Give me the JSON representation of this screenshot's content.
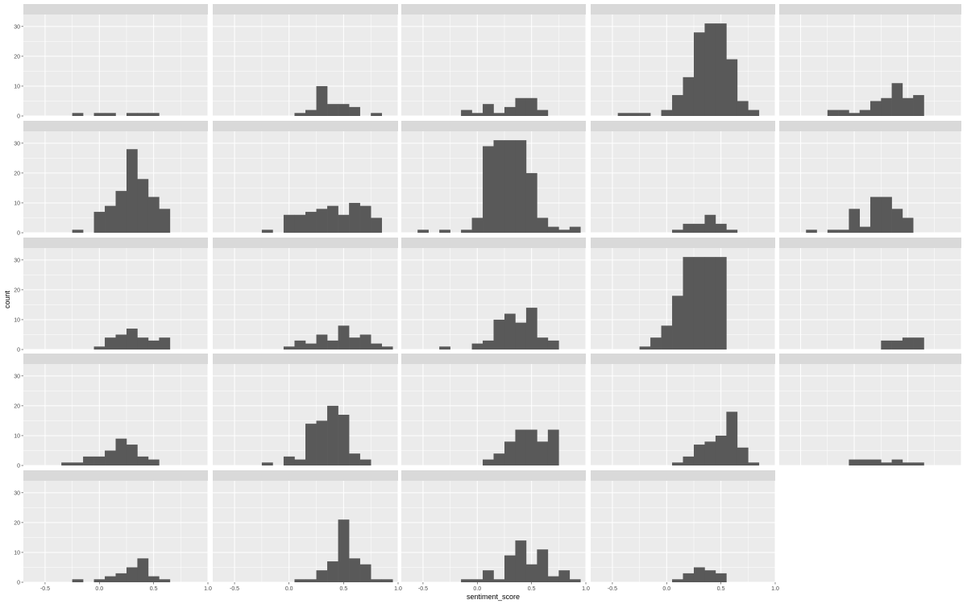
{
  "chart_data": {
    "type": "histogram_facets",
    "xlabel": "sentiment_score",
    "ylabel": "count",
    "xlim": [
      -0.7,
      1.0
    ],
    "ylim": [
      0,
      34
    ],
    "bin_width": 0.1,
    "bin_starts": [
      -0.55,
      -0.45,
      -0.35,
      -0.25,
      -0.15,
      -0.05,
      0.05,
      0.15,
      0.25,
      0.35,
      0.45,
      0.55,
      0.65,
      0.75,
      0.85,
      0.95
    ],
    "x_ticks_left": [
      -0.5,
      0.0,
      0.5,
      1.0
    ],
    "x_ticks_right": [
      -0.5,
      0.0,
      0.5,
      1.0
    ],
    "x_tick_labels_left": [
      "-0.5",
      "0.0",
      "0.5",
      "1.0"
    ],
    "x_tick_labels_right": [
      "-0.5",
      "0.0",
      "0.5",
      "1.0"
    ],
    "y_ticks": [
      0,
      10,
      20,
      30
    ],
    "y_tick_labels": [
      "0",
      "10",
      "20",
      "30"
    ],
    "grid": true,
    "bar_color": "#595959",
    "panel_bg": "#ebebeb",
    "strip_bg": "#d9d9d9",
    "grid_color": "#ffffff",
    "facets": [
      {
        "row": 0,
        "col": 0,
        "counts": [
          0,
          0,
          0,
          1,
          0,
          1,
          1,
          0,
          1,
          1,
          1,
          0,
          0,
          0,
          0,
          0
        ]
      },
      {
        "row": 0,
        "col": 1,
        "counts": [
          0,
          0,
          0,
          0,
          0,
          0,
          1,
          2,
          10,
          4,
          4,
          3,
          0,
          1,
          0,
          0
        ]
      },
      {
        "row": 0,
        "col": 2,
        "counts": [
          0,
          0,
          0,
          0,
          2,
          1,
          4,
          1,
          3,
          6,
          6,
          2,
          0,
          0,
          0,
          0
        ]
      },
      {
        "row": 0,
        "col": 3,
        "counts": [
          0,
          1,
          1,
          1,
          0,
          2,
          7,
          13,
          28,
          31,
          31,
          19,
          5,
          2,
          0,
          0
        ]
      },
      {
        "row": 0,
        "col": 4,
        "counts": [
          0,
          0,
          0,
          2,
          2,
          1,
          2,
          5,
          6,
          11,
          6,
          7,
          0,
          0,
          0,
          0
        ]
      },
      {
        "row": 1,
        "col": 0,
        "counts": [
          0,
          0,
          0,
          1,
          0,
          7,
          9,
          14,
          28,
          18,
          12,
          8,
          0,
          0,
          0,
          0
        ]
      },
      {
        "row": 1,
        "col": 1,
        "counts": [
          0,
          0,
          0,
          1,
          0,
          6,
          6,
          7,
          8,
          9,
          6,
          10,
          9,
          5,
          0,
          0
        ]
      },
      {
        "row": 1,
        "col": 2,
        "counts": [
          1,
          0,
          1,
          0,
          1,
          5,
          29,
          31,
          31,
          31,
          20,
          5,
          2,
          1,
          2,
          0
        ]
      },
      {
        "row": 1,
        "col": 3,
        "counts": [
          0,
          0,
          0,
          0,
          0,
          0,
          1,
          3,
          3,
          6,
          3,
          1,
          0,
          0,
          0,
          0
        ]
      },
      {
        "row": 1,
        "col": 4,
        "counts": [
          0,
          1,
          0,
          1,
          1,
          8,
          2,
          12,
          12,
          8,
          5,
          0,
          0,
          0,
          0,
          0
        ]
      },
      {
        "row": 2,
        "col": 0,
        "counts": [
          0,
          0,
          0,
          0,
          0,
          1,
          4,
          5,
          7,
          4,
          3,
          4,
          0,
          0,
          0,
          0
        ]
      },
      {
        "row": 2,
        "col": 1,
        "counts": [
          0,
          0,
          0,
          0,
          0,
          1,
          3,
          2,
          5,
          3,
          8,
          4,
          5,
          2,
          1,
          0
        ]
      },
      {
        "row": 2,
        "col": 2,
        "counts": [
          0,
          0,
          1,
          0,
          0,
          2,
          3,
          10,
          12,
          9,
          14,
          4,
          3,
          0,
          0,
          0
        ]
      },
      {
        "row": 2,
        "col": 3,
        "counts": [
          0,
          0,
          0,
          1,
          4,
          8,
          18,
          31,
          31,
          31,
          31,
          0,
          0,
          0,
          0,
          0
        ]
      },
      {
        "row": 2,
        "col": 4,
        "counts": [
          0,
          0,
          0,
          0,
          0,
          0,
          0,
          0,
          3,
          3,
          4,
          4,
          0,
          0,
          0,
          0
        ]
      },
      {
        "row": 3,
        "col": 0,
        "counts": [
          0,
          0,
          1,
          1,
          3,
          3,
          5,
          9,
          7,
          3,
          2,
          0,
          0,
          0,
          0,
          0
        ]
      },
      {
        "row": 3,
        "col": 1,
        "counts": [
          0,
          0,
          0,
          1,
          0,
          3,
          2,
          14,
          15,
          20,
          17,
          4,
          2,
          0,
          0,
          0
        ]
      },
      {
        "row": 3,
        "col": 2,
        "counts": [
          0,
          0,
          0,
          0,
          0,
          0,
          2,
          4,
          8,
          12,
          12,
          8,
          12,
          0,
          0,
          0
        ]
      },
      {
        "row": 3,
        "col": 3,
        "counts": [
          0,
          0,
          0,
          0,
          0,
          0,
          1,
          3,
          7,
          8,
          10,
          18,
          6,
          1,
          0,
          0
        ]
      },
      {
        "row": 3,
        "col": 4,
        "counts": [
          0,
          0,
          0,
          0,
          0,
          2,
          2,
          2,
          1,
          2,
          1,
          1,
          0,
          0,
          0,
          0
        ]
      },
      {
        "row": 4,
        "col": 0,
        "counts": [
          0,
          0,
          0,
          1,
          0,
          1,
          2,
          3,
          5,
          8,
          2,
          1,
          0,
          0,
          0,
          0
        ]
      },
      {
        "row": 4,
        "col": 1,
        "counts": [
          0,
          0,
          0,
          0,
          0,
          0,
          1,
          1,
          4,
          7,
          21,
          8,
          6,
          1,
          1,
          0
        ]
      },
      {
        "row": 4,
        "col": 2,
        "counts": [
          0,
          0,
          0,
          0,
          1,
          1,
          4,
          1,
          9,
          14,
          6,
          11,
          2,
          4,
          1,
          0
        ]
      },
      {
        "row": 4,
        "col": 3,
        "counts": [
          0,
          0,
          0,
          0,
          0,
          0,
          1,
          3,
          5,
          4,
          3,
          0,
          0,
          0,
          0,
          0
        ]
      }
    ]
  }
}
